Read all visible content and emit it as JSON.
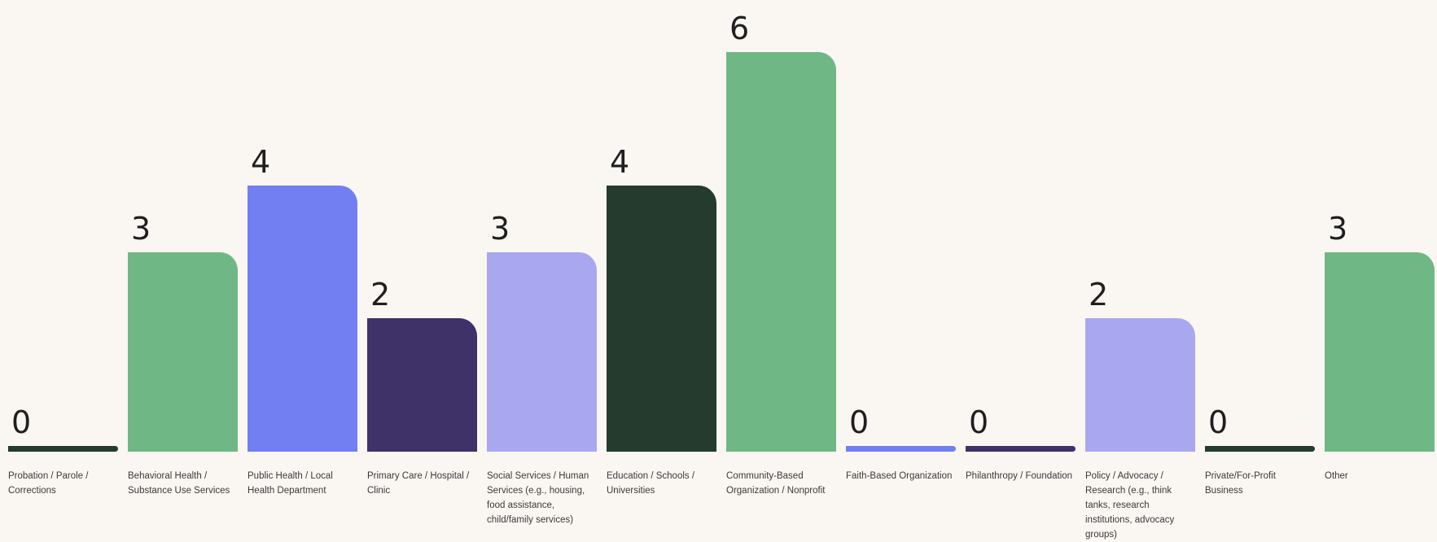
{
  "chart_data": {
    "type": "bar",
    "categories": [
      "Probation / Parole / Corrections",
      "Behavioral Health / Substance Use Services",
      "Public Health / Local Health Department",
      "Primary Care / Hospital / Clinic",
      "Social Services / Human Services (e.g., housing, food assistance, child/family services)",
      "Education / Schools / Universities",
      "Community-Based Organization / Nonprofit",
      "Faith-Based Organization",
      "Philanthropy / Foundation",
      "Policy / Advocacy / Research (e.g., think tanks, research institutions, advocacy groups)",
      "Private/For-Profit Business",
      "Other"
    ],
    "values": [
      0,
      3,
      4,
      2,
      3,
      4,
      6,
      0,
      0,
      2,
      0,
      3
    ],
    "value_labels": [
      "0",
      "3",
      "4",
      "2",
      "3",
      "4",
      "6",
      "0",
      "0",
      "2",
      "0",
      "3"
    ],
    "colors": [
      "#243b2e",
      "#6fb886",
      "#717ff2",
      "#3e3268",
      "#a8a7ef",
      "#243b2e",
      "#6fb886",
      "#717ff2",
      "#3e3268",
      "#a8a7ef",
      "#243b2e",
      "#6fb886"
    ],
    "ylim": [
      0,
      6
    ],
    "title": "",
    "xlabel": "",
    "ylabel": "",
    "grid": false,
    "legend": "none"
  }
}
